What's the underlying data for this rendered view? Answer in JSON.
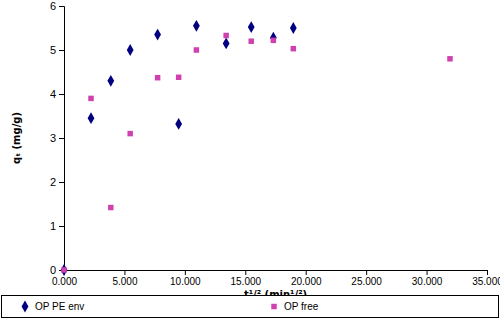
{
  "chart_data": {
    "type": "scatter",
    "x_label": "t¹/² (min¹/²)",
    "y_label": "qₜ (mg/g)",
    "series": [
      {
        "name": "OP PE env",
        "color": "#000080",
        "marker": "diamond",
        "x": [
          0,
          2.236,
          3.873,
          5.477,
          7.746,
          9.487,
          10.954,
          13.416,
          15.492,
          17.321,
          18.974
        ],
        "values": [
          0,
          3.45,
          4.3,
          5.0,
          5.35,
          3.32,
          5.55,
          5.15,
          5.52,
          5.28,
          5.5
        ]
      },
      {
        "name": "OP free",
        "color": "#d040b0",
        "marker": "square",
        "x": [
          0,
          2.236,
          3.873,
          5.477,
          7.746,
          9.487,
          10.954,
          13.416,
          15.492,
          17.321,
          18.974,
          31.937
        ],
        "values": [
          0,
          3.9,
          1.42,
          3.1,
          4.37,
          4.38,
          5.0,
          5.33,
          5.2,
          5.22,
          5.03,
          4.8
        ]
      }
    ],
    "xlim": [
      0,
      35
    ],
    "xticks": [
      {
        "value": 0,
        "label": "0.000"
      },
      {
        "value": 5,
        "label": "5.000"
      },
      {
        "value": 10,
        "label": "10.000"
      },
      {
        "value": 15,
        "label": "15.000"
      },
      {
        "value": 20,
        "label": "20.000"
      },
      {
        "value": 25,
        "label": "25.000"
      },
      {
        "value": 30,
        "label": "30.000"
      },
      {
        "value": 35,
        "label": "35.000"
      }
    ],
    "ylim": [
      0,
      6
    ],
    "yticks": [
      0,
      1,
      2,
      3,
      4,
      5,
      6
    ],
    "grid": false,
    "legend": "bottom"
  }
}
